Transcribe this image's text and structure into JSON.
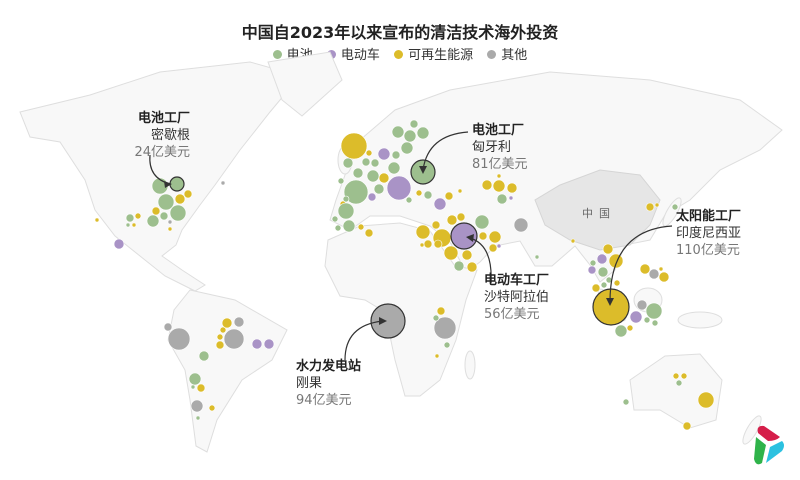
{
  "title": "中国自2023年以来宣布的清洁技术海外投资",
  "legend": [
    {
      "label": "电池",
      "color": "#9dbf8e"
    },
    {
      "label": "电动车",
      "color": "#a993c6"
    },
    {
      "label": "可再生能源",
      "color": "#dcbc2a"
    },
    {
      "label": "其他",
      "color": "#aaaaaa"
    }
  ],
  "map_labels": {
    "china": "中国"
  },
  "annotations": [
    {
      "type": "电池工厂",
      "place": "密歇根",
      "value": "24亿美元",
      "category": "电池"
    },
    {
      "type": "电池工厂",
      "place": "匈牙利",
      "value": "81亿美元",
      "category": "电池"
    },
    {
      "type": "电动车工厂",
      "place": "沙特阿拉伯",
      "value": "56亿美元",
      "category": "电动车"
    },
    {
      "type": "水力发电站",
      "place": "刚果",
      "value": "94亿美元",
      "category": "其他"
    },
    {
      "type": "太阳能工厂",
      "place": "印度尼西亚",
      "value": "110亿美元",
      "category": "可再生能源"
    }
  ],
  "logo": "tri-color-petal-logo"
}
